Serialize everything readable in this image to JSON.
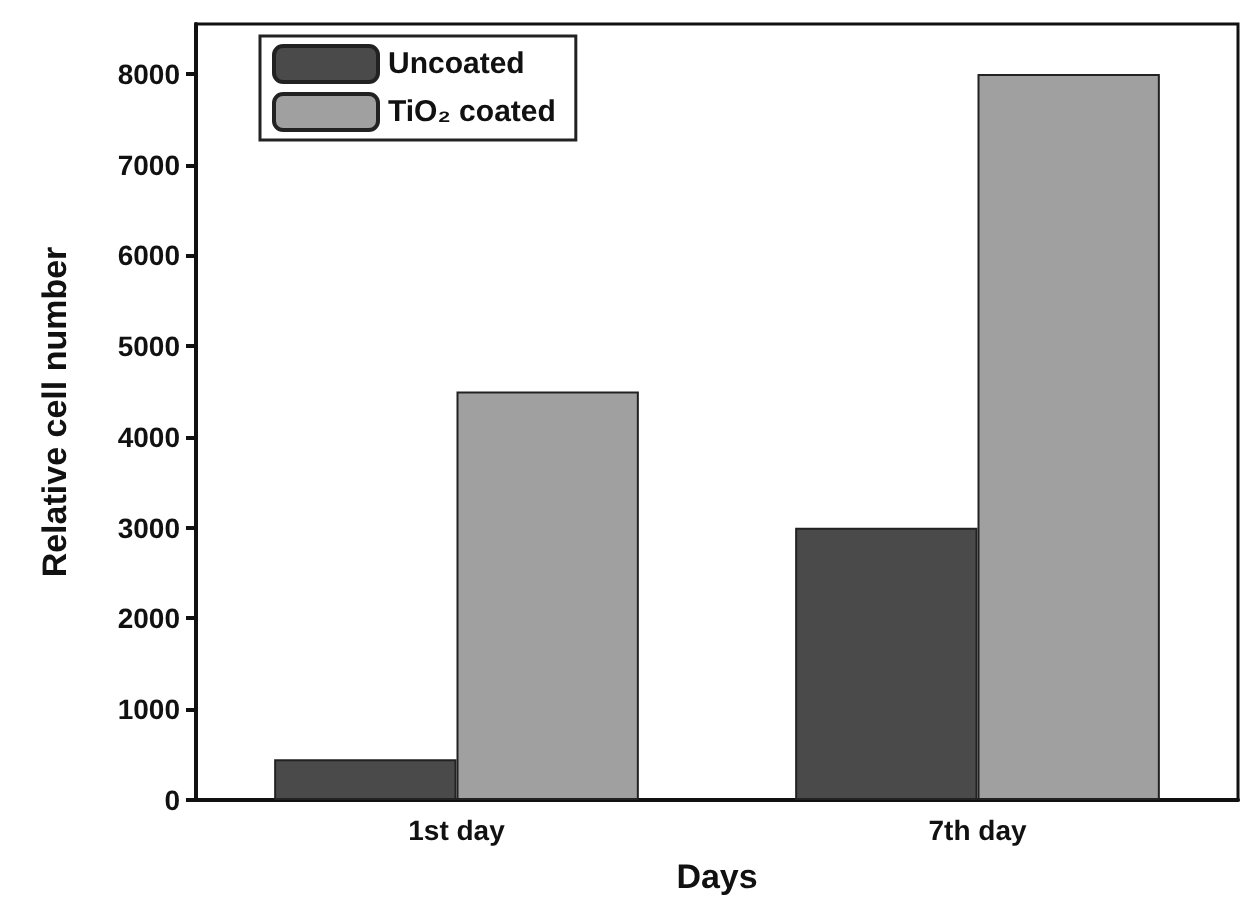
{
  "chart_data": {
    "type": "bar",
    "xlabel": "Days",
    "ylabel": "Relative cell number",
    "categories": [
      "1st day",
      "7th day"
    ],
    "series": [
      {
        "name": "Uncoated",
        "color": "#4a4a4a",
        "values": [
          450,
          3000
        ]
      },
      {
        "name": "TiO₂ coated",
        "color": "#a0a0a0",
        "values": [
          4500,
          8000
        ]
      }
    ],
    "ylim": [
      0,
      8550
    ],
    "yticks": [
      0,
      1000,
      2000,
      3000,
      4000,
      5000,
      6000,
      7000,
      8000
    ],
    "grid": false,
    "legend": "top left"
  }
}
